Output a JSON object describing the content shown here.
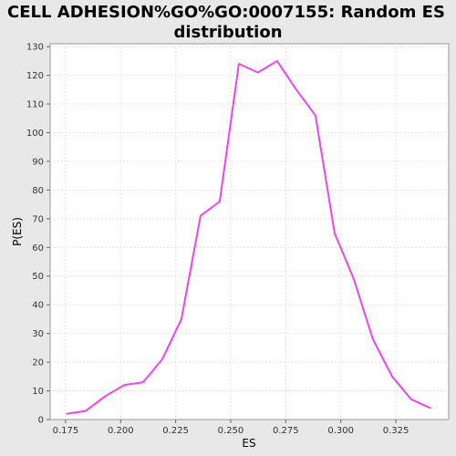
{
  "chart_data": {
    "type": "line",
    "title_lines": [
      "CELL ADHESION%GO%GO:0007155: Random ES",
      "distribution"
    ],
    "xlabel": "ES",
    "ylabel": "P(ES)",
    "xlim": [
      0.168,
      0.349
    ],
    "ylim": [
      0,
      131
    ],
    "x_ticks": [
      0.175,
      0.2,
      0.225,
      0.25,
      0.275,
      0.3,
      0.325
    ],
    "x_tick_labels": [
      "0.175",
      "0.200",
      "0.225",
      "0.250",
      "0.275",
      "0.300",
      "0.325"
    ],
    "y_ticks": [
      0,
      10,
      20,
      30,
      40,
      50,
      60,
      70,
      80,
      90,
      100,
      110,
      120,
      130
    ],
    "y_tick_labels": [
      "0",
      "10",
      "20",
      "30",
      "40",
      "50",
      "60",
      "70",
      "80",
      "90",
      "100",
      "110",
      "120",
      "130"
    ],
    "grid": true,
    "series": [
      {
        "color": "#ee44ee",
        "x": [
          0.1755,
          0.1841,
          0.1928,
          0.2015,
          0.2102,
          0.2189,
          0.2276,
          0.2363,
          0.245,
          0.2537,
          0.2624,
          0.2711,
          0.2798,
          0.2885,
          0.2972,
          0.3059,
          0.3146,
          0.3233,
          0.332,
          0.3407
        ],
        "y": [
          2,
          3,
          8,
          12,
          13,
          21,
          35,
          71,
          76,
          124,
          121,
          125,
          115,
          106,
          65,
          49,
          28,
          15,
          7,
          4
        ]
      }
    ]
  }
}
